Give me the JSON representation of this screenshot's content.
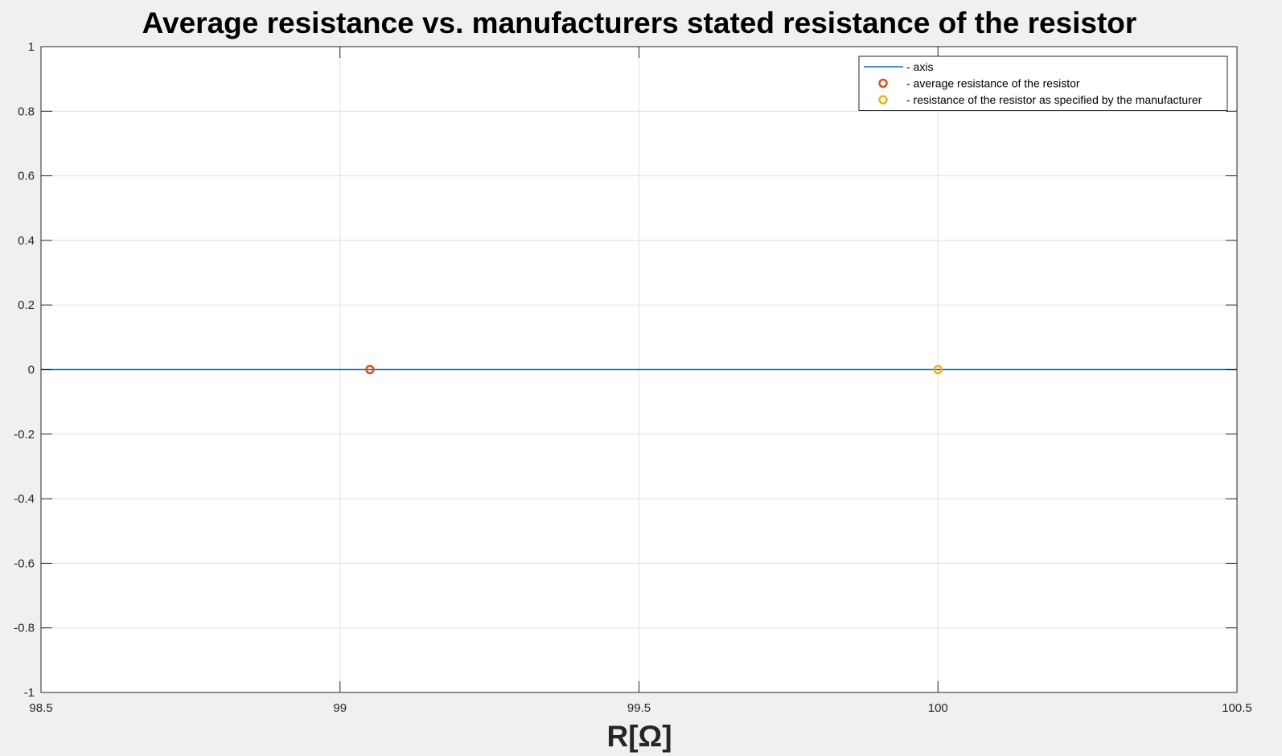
{
  "chart_data": {
    "type": "scatter",
    "title": "Average resistance vs. manufacturers stated resistance of the resistor",
    "xlabel": "R[Ω]",
    "ylabel": "",
    "xlim": [
      98.5,
      100.5
    ],
    "ylim": [
      -1,
      1
    ],
    "x_ticks": [
      98.5,
      99,
      99.5,
      100,
      100.5
    ],
    "x_tick_labels": [
      "98.5",
      "99",
      "99.5",
      "100",
      "100.5"
    ],
    "y_ticks": [
      1,
      0.8,
      0.6,
      0.4,
      0.2,
      0,
      -0.2,
      -0.4,
      -0.6,
      -0.8,
      -1
    ],
    "y_tick_labels": [
      "1",
      "0.8",
      "0.6",
      "0.4",
      "0.2",
      "0",
      "-0.2",
      "-0.4",
      "-0.6",
      "-0.8",
      "-1"
    ],
    "grid": true,
    "legend_position": "top-right",
    "series": [
      {
        "name": "- axis",
        "kind": "line",
        "color": "#0072BD",
        "x": [
          98.5,
          100.5
        ],
        "y": [
          0,
          0
        ]
      },
      {
        "name": "- average resistance of the resistor",
        "kind": "marker",
        "marker": "circle",
        "color": "#D95319",
        "x": [
          99.05
        ],
        "y": [
          0
        ]
      },
      {
        "name": "- resistance of the resistor as specified by the manufacturer",
        "kind": "marker",
        "marker": "circle",
        "color": "#EDB120",
        "x": [
          100
        ],
        "y": [
          0
        ]
      }
    ]
  }
}
